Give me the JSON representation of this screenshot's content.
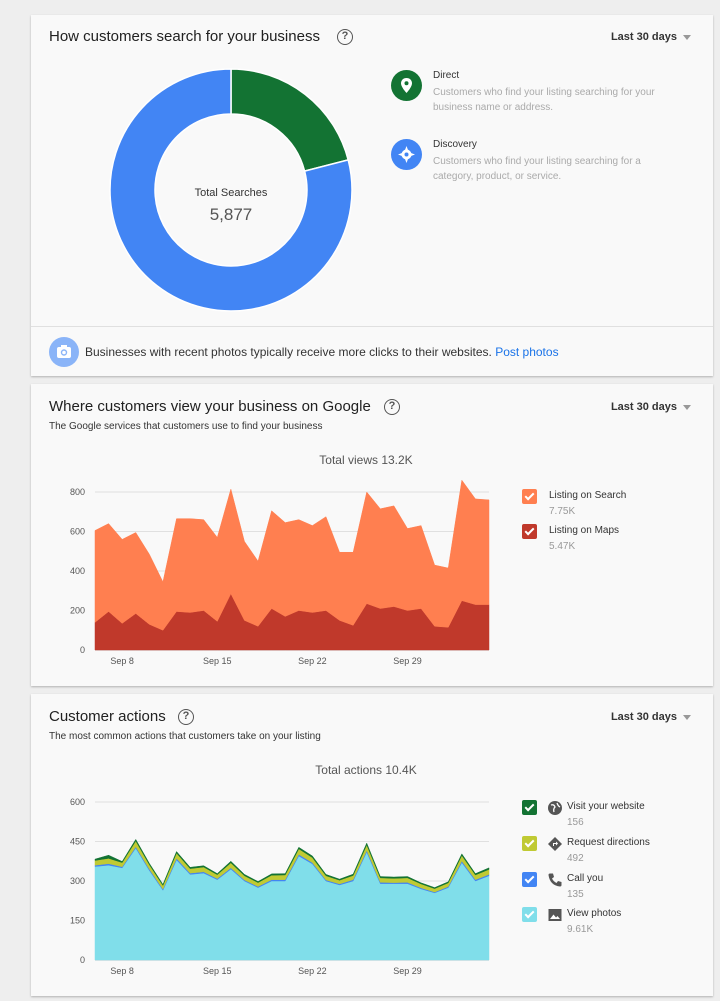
{
  "search_card": {
    "title": "How customers search for your business",
    "help": "?",
    "range": "Last 30 days",
    "donut": {
      "label": "Total Searches",
      "value": "5,877",
      "direct_fraction": 0.21
    },
    "legend": [
      {
        "title": "Direct",
        "desc": "Customers who find your listing searching for your business name or address.",
        "color": "#137333",
        "icon": "map-pin-icon"
      },
      {
        "title": "Discovery",
        "desc": "Customers who find your listing searching for a category, product, or service.",
        "color": "#4285f4",
        "icon": "compass-icon"
      }
    ],
    "footer": {
      "text": "Businesses with recent photos typically receive more clicks to their websites.",
      "link": "Post photos",
      "icon": "camera-icon"
    }
  },
  "views_card": {
    "title": "Where customers view your business on Google",
    "help": "?",
    "subtitle": "The Google services that customers use to find your business",
    "range": "Last 30 days",
    "total": "Total views 13.2K",
    "legend": [
      {
        "name": "Listing on Search",
        "value": "7.75K",
        "color": "#ff7f50"
      },
      {
        "name": "Listing on Maps",
        "value": "5.47K",
        "color": "#c0392b"
      }
    ]
  },
  "actions_card": {
    "title": "Customer actions",
    "help": "?",
    "subtitle": "The most common actions that customers take on your listing",
    "range": "Last 30 days",
    "total": "Total actions 10.4K",
    "legend": [
      {
        "name": "Visit your website",
        "value": "156",
        "color": "#137333",
        "icon": "globe-icon"
      },
      {
        "name": "Request directions",
        "value": "492",
        "color": "#c0ca33",
        "icon": "directions-icon"
      },
      {
        "name": "Call you",
        "value": "135",
        "color": "#4285f4",
        "icon": "phone-icon"
      },
      {
        "name": "View photos",
        "value": "9.61K",
        "color": "#80deea",
        "icon": "image-icon"
      }
    ]
  },
  "chart_data": [
    {
      "type": "pie",
      "title": "Total Searches",
      "categories": [
        "Direct",
        "Discovery"
      ],
      "values": [
        1234,
        4643
      ]
    },
    {
      "type": "area",
      "x_ticks": [
        "Sep 8",
        "Sep 15",
        "Sep 22",
        "Sep 29"
      ],
      "ylim": [
        0,
        800
      ],
      "y_ticks": [
        0,
        200,
        400,
        600,
        800
      ],
      "grid": true,
      "legend": "right",
      "stacked": true,
      "series": [
        {
          "name": "Listing on Maps",
          "color": "#c0392b",
          "values": [
            140,
            195,
            135,
            185,
            130,
            100,
            195,
            190,
            200,
            145,
            285,
            150,
            120,
            210,
            170,
            200,
            190,
            200,
            150,
            125,
            235,
            210,
            220,
            200,
            210,
            120,
            115,
            250,
            230,
            230
          ]
        },
        {
          "name": "Listing on Search",
          "color": "#ff7f50",
          "values": [
            465,
            445,
            425,
            410,
            355,
            245,
            470,
            475,
            460,
            425,
            530,
            400,
            330,
            495,
            475,
            460,
            440,
            475,
            345,
            370,
            565,
            505,
            510,
            415,
            420,
            310,
            300,
            610,
            535,
            530
          ]
        }
      ]
    },
    {
      "type": "area",
      "x_ticks": [
        "Sep 8",
        "Sep 15",
        "Sep 22",
        "Sep 29"
      ],
      "ylim": [
        0,
        600
      ],
      "y_ticks": [
        0,
        150,
        300,
        450,
        600
      ],
      "grid": true,
      "legend": "right",
      "stacked": true,
      "series": [
        {
          "name": "View photos",
          "color": "#80deea",
          "values": [
            355,
            360,
            350,
            425,
            340,
            265,
            380,
            325,
            330,
            305,
            345,
            300,
            275,
            300,
            300,
            395,
            365,
            300,
            285,
            300,
            410,
            290,
            290,
            290,
            270,
            255,
            275,
            370,
            300,
            320
          ]
        },
        {
          "name": "Call you",
          "color": "#4285f4",
          "values": [
            5,
            6,
            4,
            5,
            5,
            4,
            6,
            5,
            5,
            4,
            5,
            4,
            4,
            5,
            5,
            6,
            5,
            4,
            4,
            5,
            6,
            5,
            4,
            5,
            4,
            3,
            4,
            6,
            5,
            5
          ]
        },
        {
          "name": "Request directions",
          "color": "#c0ca33",
          "values": [
            18,
            20,
            16,
            22,
            17,
            14,
            20,
            17,
            18,
            15,
            19,
            16,
            15,
            17,
            18,
            21,
            19,
            16,
            14,
            16,
            21,
            17,
            16,
            17,
            15,
            13,
            14,
            21,
            18,
            19
          ]
        },
        {
          "name": "Visit your website",
          "color": "#137333",
          "values": [
            5,
            12,
            4,
            6,
            5,
            4,
            6,
            5,
            5,
            4,
            6,
            5,
            4,
            5,
            5,
            6,
            6,
            5,
            4,
            5,
            7,
            5,
            5,
            5,
            4,
            4,
            4,
            6,
            5,
            6
          ]
        }
      ]
    }
  ]
}
